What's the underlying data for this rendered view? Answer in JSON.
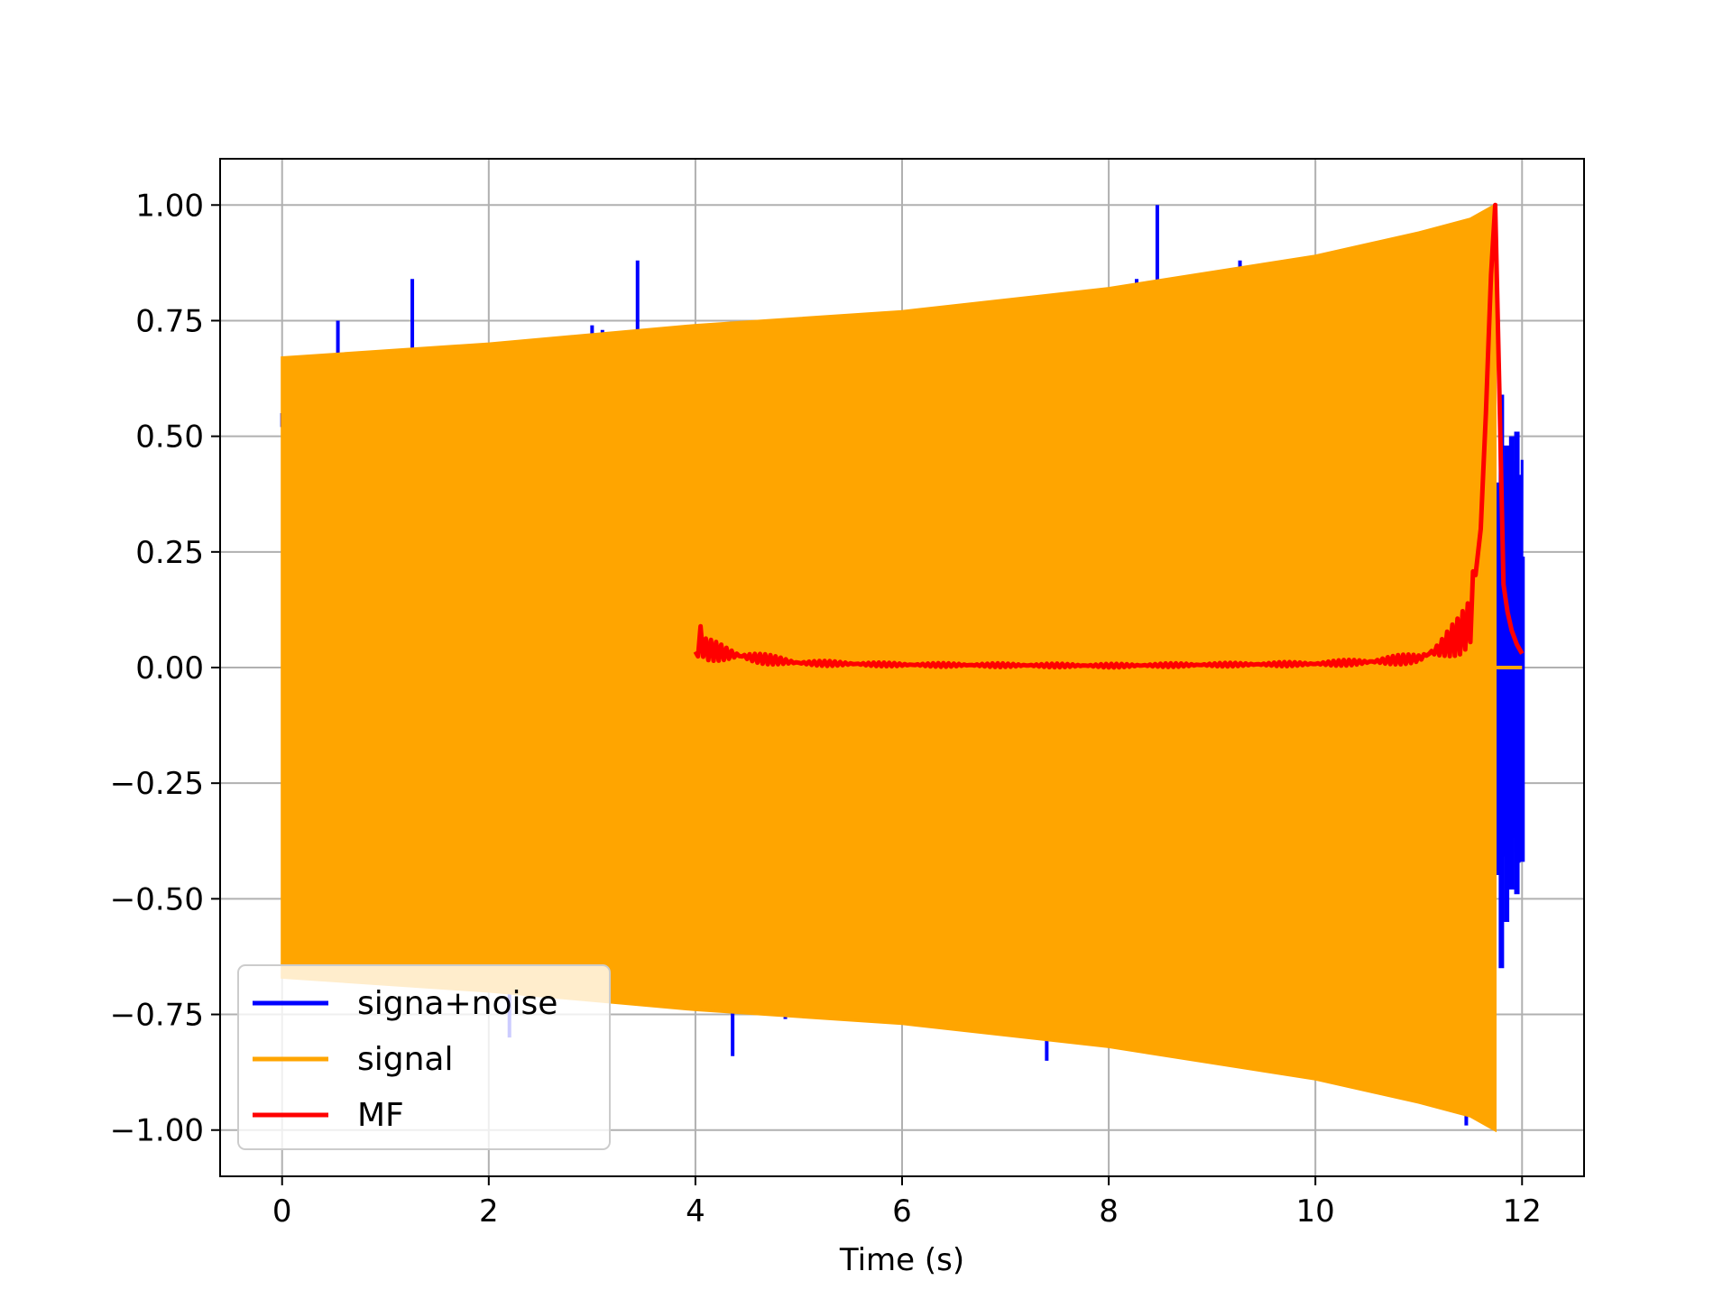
{
  "chart_data": {
    "type": "line",
    "title": "",
    "xlabel": "Time (s)",
    "ylabel": "",
    "xlim": [
      -0.6,
      12.6
    ],
    "ylim": [
      -1.1,
      1.1
    ],
    "x_ticks": [
      0,
      2,
      4,
      6,
      8,
      10,
      12
    ],
    "x_tick_labels": [
      "0",
      "2",
      "4",
      "6",
      "8",
      "10",
      "12"
    ],
    "y_ticks": [
      1.0,
      0.75,
      0.5,
      0.25,
      0.0,
      -0.25,
      -0.5,
      -0.75,
      -1.0
    ],
    "y_tick_labels": [
      "1.00",
      "0.75",
      "0.50",
      "0.25",
      "0.00",
      "−0.25",
      "−0.50",
      "−0.75",
      "−1.00"
    ],
    "grid": true,
    "legend_position": "lower-left",
    "legend": [
      "signa+noise",
      "signal",
      "MF"
    ],
    "series": [
      {
        "name": "signa+noise",
        "color": "#0000ff",
        "style": "noisy chirp, visible spikes beyond signal envelope",
        "spikes": [
          {
            "x": 0.0,
            "y": 0.52
          },
          {
            "x": 0.54,
            "y": 0.75
          },
          {
            "x": 1.26,
            "y": 0.84
          },
          {
            "x": 3.0,
            "y": 0.74
          },
          {
            "x": 3.1,
            "y": 0.73
          },
          {
            "x": 3.44,
            "y": 0.88
          },
          {
            "x": 8.27,
            "y": 0.84
          },
          {
            "x": 8.47,
            "y": 1.0
          },
          {
            "x": 9.27,
            "y": 0.88
          },
          {
            "x": 2.2,
            "y": -0.8
          },
          {
            "x": 4.36,
            "y": -0.84
          },
          {
            "x": 4.87,
            "y": -0.76
          },
          {
            "x": 7.4,
            "y": -0.85
          },
          {
            "x": 11.46,
            "y": -0.99
          }
        ],
        "tail_x": [
          11.75,
          11.8,
          11.85,
          11.9,
          11.95,
          12.0
        ],
        "tail_y_max": [
          0.4,
          0.59,
          0.48,
          0.5,
          0.51,
          0.24
        ],
        "tail_y_min": [
          -0.43,
          -0.65,
          -0.55,
          -0.48,
          -0.49,
          -0.42
        ]
      },
      {
        "name": "signal",
        "color": "#ffa500",
        "style": "chirp with growing amplitude (filled envelope)",
        "envelope_x": [
          0,
          2,
          4,
          6,
          8,
          10,
          11,
          11.5,
          11.74
        ],
        "envelope_y": [
          0.67,
          0.7,
          0.74,
          0.77,
          0.82,
          0.89,
          0.94,
          0.97,
          1.0
        ],
        "end_x": 11.74
      },
      {
        "name": "MF",
        "color": "#ff0000",
        "style": "matched filter output with ringing",
        "x": [
          4.0,
          4.05,
          4.1,
          4.3,
          4.6,
          5.0,
          5.5,
          6.0,
          7.0,
          8.0,
          9.0,
          10.0,
          10.5,
          11.0,
          11.2,
          11.4,
          11.5,
          11.55,
          11.6,
          11.65,
          11.7,
          11.74,
          11.78,
          11.82,
          11.86,
          11.9,
          11.95,
          12.0
        ],
        "y": [
          0.025,
          0.06,
          0.04,
          0.03,
          0.02,
          0.01,
          0.008,
          0.006,
          0.005,
          0.004,
          0.006,
          0.008,
          0.012,
          0.02,
          0.04,
          0.07,
          0.1,
          0.2,
          0.3,
          0.55,
          0.85,
          1.0,
          0.6,
          0.18,
          0.12,
          0.08,
          0.05,
          0.03
        ]
      }
    ]
  }
}
